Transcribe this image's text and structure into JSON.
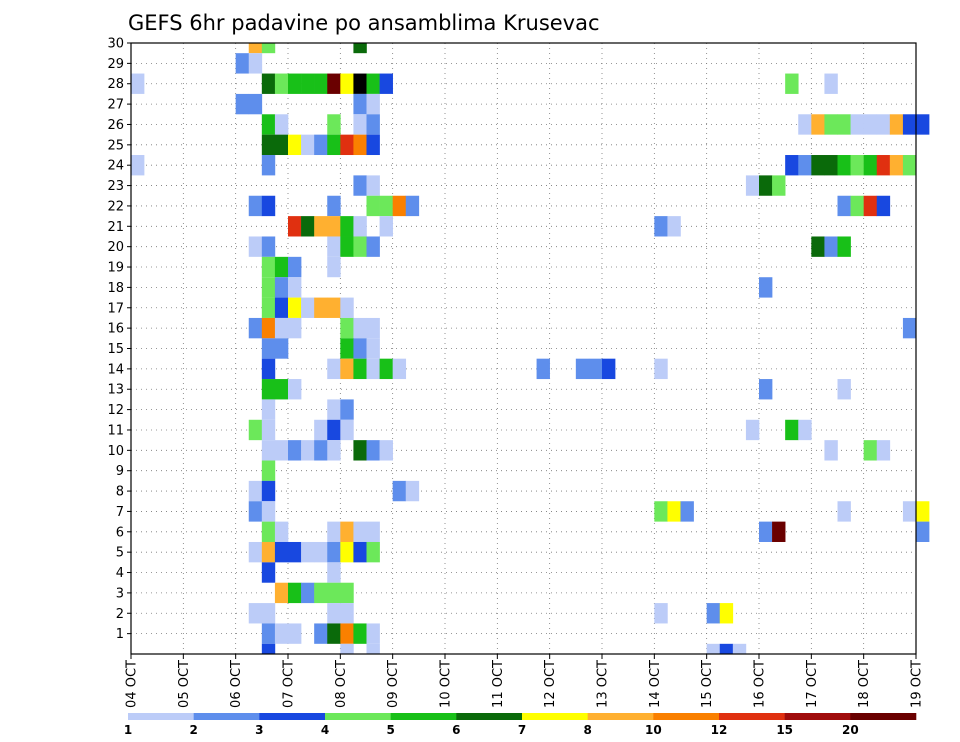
{
  "chart_data": {
    "type": "heatmap",
    "title": "GEFS 6hr padavine po ansamblima Krusevac",
    "xlabel": "",
    "ylabel": "",
    "x_start_day": 4,
    "x_end_day": 19,
    "steps_per_day": 4,
    "xtick_labels": [
      "04 OCT",
      "05 OCT",
      "06 OCT",
      "07 OCT",
      "08 OCT",
      "09 OCT",
      "10 OCT",
      "11 OCT",
      "12 OCT",
      "13 OCT",
      "14 OCT",
      "15 OCT",
      "16 OCT",
      "17 OCT",
      "18 OCT",
      "19 OCT"
    ],
    "ytick_labels": [
      "1",
      "2",
      "3",
      "4",
      "5",
      "6",
      "7",
      "8",
      "9",
      "10",
      "11",
      "12",
      "13",
      "14",
      "15",
      "16",
      "17",
      "18",
      "19",
      "20",
      "21",
      "22",
      "23",
      "24",
      "25",
      "26",
      "27",
      "28",
      "29",
      "30"
    ],
    "ylim": [
      0,
      30
    ],
    "grid": true,
    "colorbar": {
      "labels": [
        "1",
        "2",
        "3",
        "4",
        "5",
        "6",
        "7",
        "8",
        "10",
        "12",
        "15",
        "20"
      ],
      "colors": [
        "#bcccf8",
        "#5e8eec",
        "#1848e0",
        "#6ce85a",
        "#18c018",
        "#0a6a0a",
        "#ffff00",
        "#ffb030",
        "#fa8000",
        "#e03010",
        "#a00c0c",
        "#6a0000"
      ]
    },
    "cells": [
      [
        30,
        6,
        1,
        7
      ],
      [
        30,
        6,
        2,
        3
      ],
      [
        30,
        8,
        1,
        5
      ],
      [
        29,
        6,
        0,
        1
      ],
      [
        29,
        6,
        1,
        0
      ],
      [
        28,
        4,
        0,
        0
      ],
      [
        28,
        6,
        2,
        5
      ],
      [
        28,
        6,
        3,
        3
      ],
      [
        28,
        7,
        0,
        4
      ],
      [
        28,
        7,
        1,
        4
      ],
      [
        28,
        7,
        2,
        4
      ],
      [
        28,
        7,
        3,
        11
      ],
      [
        28,
        8,
        0,
        6
      ],
      [
        28,
        8,
        1,
        12
      ],
      [
        28,
        8,
        2,
        4
      ],
      [
        28,
        8,
        3,
        2
      ],
      [
        28,
        16,
        2,
        3
      ],
      [
        28,
        17,
        1,
        0
      ],
      [
        27,
        6,
        0,
        1
      ],
      [
        27,
        6,
        1,
        1
      ],
      [
        27,
        8,
        1,
        1
      ],
      [
        27,
        8,
        2,
        0
      ],
      [
        26,
        6,
        2,
        4
      ],
      [
        26,
        6,
        3,
        0
      ],
      [
        26,
        7,
        3,
        3
      ],
      [
        26,
        8,
        1,
        0
      ],
      [
        26,
        8,
        2,
        1
      ],
      [
        26,
        16,
        3,
        0
      ],
      [
        26,
        17,
        0,
        7
      ],
      [
        26,
        17,
        1,
        3
      ],
      [
        26,
        17,
        2,
        3
      ],
      [
        26,
        17,
        3,
        0
      ],
      [
        26,
        18,
        0,
        0
      ],
      [
        26,
        18,
        1,
        0
      ],
      [
        26,
        18,
        2,
        7
      ],
      [
        26,
        18,
        3,
        2
      ],
      [
        26,
        19,
        0,
        2
      ],
      [
        25,
        6,
        2,
        5
      ],
      [
        25,
        6,
        3,
        5
      ],
      [
        25,
        7,
        0,
        6
      ],
      [
        25,
        7,
        1,
        0
      ],
      [
        25,
        7,
        2,
        1
      ],
      [
        25,
        7,
        3,
        4
      ],
      [
        25,
        8,
        0,
        9
      ],
      [
        25,
        8,
        1,
        8
      ],
      [
        25,
        8,
        2,
        2
      ],
      [
        24,
        4,
        0,
        0
      ],
      [
        24,
        6,
        2,
        1
      ],
      [
        24,
        16,
        2,
        2
      ],
      [
        24,
        16,
        3,
        1
      ],
      [
        24,
        17,
        0,
        5
      ],
      [
        24,
        17,
        1,
        5
      ],
      [
        24,
        17,
        2,
        4
      ],
      [
        24,
        17,
        3,
        3
      ],
      [
        24,
        18,
        0,
        4
      ],
      [
        24,
        18,
        1,
        9
      ],
      [
        24,
        18,
        2,
        7
      ],
      [
        24,
        18,
        3,
        3
      ],
      [
        23,
        8,
        1,
        1
      ],
      [
        23,
        8,
        2,
        0
      ],
      [
        23,
        15,
        3,
        0
      ],
      [
        23,
        16,
        0,
        5
      ],
      [
        23,
        16,
        1,
        3
      ],
      [
        22,
        6,
        1,
        1
      ],
      [
        22,
        6,
        2,
        2
      ],
      [
        22,
        7,
        3,
        1
      ],
      [
        22,
        8,
        2,
        3
      ],
      [
        22,
        8,
        3,
        3
      ],
      [
        22,
        9,
        0,
        8
      ],
      [
        22,
        9,
        1,
        1
      ],
      [
        22,
        17,
        2,
        1
      ],
      [
        22,
        17,
        3,
        3
      ],
      [
        22,
        18,
        0,
        9
      ],
      [
        22,
        18,
        1,
        2
      ],
      [
        21,
        7,
        0,
        9
      ],
      [
        21,
        7,
        1,
        5
      ],
      [
        21,
        7,
        2,
        7
      ],
      [
        21,
        7,
        3,
        7
      ],
      [
        21,
        8,
        0,
        4
      ],
      [
        21,
        8,
        1,
        0
      ],
      [
        21,
        8,
        3,
        0
      ],
      [
        21,
        14,
        0,
        1
      ],
      [
        21,
        14,
        1,
        0
      ],
      [
        20,
        6,
        1,
        0
      ],
      [
        20,
        6,
        2,
        1
      ],
      [
        20,
        7,
        3,
        0
      ],
      [
        20,
        8,
        0,
        4
      ],
      [
        20,
        8,
        1,
        3
      ],
      [
        20,
        8,
        2,
        1
      ],
      [
        20,
        17,
        0,
        5
      ],
      [
        20,
        17,
        1,
        1
      ],
      [
        20,
        17,
        2,
        4
      ],
      [
        19,
        6,
        2,
        3
      ],
      [
        19,
        6,
        3,
        4
      ],
      [
        19,
        7,
        0,
        1
      ],
      [
        19,
        7,
        3,
        0
      ],
      [
        18,
        6,
        2,
        3
      ],
      [
        18,
        6,
        3,
        1
      ],
      [
        18,
        7,
        0,
        0
      ],
      [
        18,
        16,
        0,
        1
      ],
      [
        17,
        6,
        2,
        3
      ],
      [
        17,
        6,
        3,
        2
      ],
      [
        17,
        7,
        0,
        6
      ],
      [
        17,
        7,
        1,
        0
      ],
      [
        17,
        7,
        2,
        7
      ],
      [
        17,
        7,
        3,
        7
      ],
      [
        17,
        8,
        0,
        0
      ],
      [
        16,
        6,
        1,
        1
      ],
      [
        16,
        6,
        2,
        8
      ],
      [
        16,
        6,
        3,
        0
      ],
      [
        16,
        7,
        0,
        0
      ],
      [
        16,
        8,
        0,
        3
      ],
      [
        16,
        8,
        1,
        0
      ],
      [
        16,
        8,
        2,
        0
      ],
      [
        16,
        18,
        3,
        1
      ],
      [
        15,
        6,
        2,
        1
      ],
      [
        15,
        6,
        3,
        1
      ],
      [
        15,
        8,
        0,
        4
      ],
      [
        15,
        8,
        1,
        1
      ],
      [
        15,
        8,
        2,
        0
      ],
      [
        14,
        6,
        2,
        2
      ],
      [
        14,
        7,
        3,
        0
      ],
      [
        14,
        8,
        0,
        7
      ],
      [
        14,
        8,
        1,
        4
      ],
      [
        14,
        8,
        2,
        0
      ],
      [
        14,
        8,
        3,
        4
      ],
      [
        14,
        9,
        0,
        0
      ],
      [
        14,
        11,
        3,
        1
      ],
      [
        14,
        12,
        2,
        1
      ],
      [
        14,
        12,
        3,
        1
      ],
      [
        14,
        13,
        0,
        2
      ],
      [
        14,
        14,
        0,
        0
      ],
      [
        13,
        6,
        2,
        4
      ],
      [
        13,
        6,
        3,
        4
      ],
      [
        13,
        7,
        0,
        0
      ],
      [
        13,
        16,
        0,
        1
      ],
      [
        13,
        17,
        2,
        0
      ],
      [
        12,
        6,
        2,
        0
      ],
      [
        12,
        7,
        3,
        0
      ],
      [
        12,
        8,
        0,
        1
      ],
      [
        11,
        6,
        1,
        3
      ],
      [
        11,
        6,
        2,
        0
      ],
      [
        11,
        7,
        2,
        0
      ],
      [
        11,
        7,
        3,
        2
      ],
      [
        11,
        8,
        0,
        0
      ],
      [
        11,
        15,
        3,
        0
      ],
      [
        11,
        16,
        2,
        4
      ],
      [
        11,
        16,
        3,
        0
      ],
      [
        10,
        6,
        2,
        0
      ],
      [
        10,
        6,
        3,
        0
      ],
      [
        10,
        7,
        0,
        1
      ],
      [
        10,
        7,
        1,
        0
      ],
      [
        10,
        7,
        2,
        1
      ],
      [
        10,
        7,
        3,
        0
      ],
      [
        10,
        8,
        1,
        5
      ],
      [
        10,
        8,
        2,
        1
      ],
      [
        10,
        8,
        3,
        0
      ],
      [
        10,
        17,
        1,
        0
      ],
      [
        10,
        18,
        0,
        3
      ],
      [
        10,
        18,
        1,
        0
      ],
      [
        9,
        6,
        2,
        3
      ],
      [
        8,
        6,
        1,
        0
      ],
      [
        8,
        6,
        2,
        2
      ],
      [
        8,
        9,
        0,
        1
      ],
      [
        8,
        9,
        1,
        0
      ],
      [
        7,
        6,
        1,
        1
      ],
      [
        7,
        6,
        2,
        0
      ],
      [
        7,
        14,
        0,
        3
      ],
      [
        7,
        14,
        1,
        6
      ],
      [
        7,
        14,
        2,
        1
      ],
      [
        7,
        17,
        2,
        0
      ],
      [
        7,
        18,
        3,
        0
      ],
      [
        7,
        19,
        0,
        6
      ],
      [
        6,
        6,
        2,
        3
      ],
      [
        6,
        6,
        3,
        0
      ],
      [
        6,
        7,
        3,
        0
      ],
      [
        6,
        8,
        0,
        7
      ],
      [
        6,
        8,
        1,
        0
      ],
      [
        6,
        8,
        2,
        0
      ],
      [
        6,
        16,
        0,
        1
      ],
      [
        6,
        16,
        1,
        11
      ],
      [
        6,
        19,
        0,
        1
      ],
      [
        5,
        6,
        1,
        0
      ],
      [
        5,
        6,
        2,
        7
      ],
      [
        5,
        6,
        3,
        2
      ],
      [
        5,
        7,
        0,
        2
      ],
      [
        5,
        7,
        1,
        0
      ],
      [
        5,
        7,
        2,
        0
      ],
      [
        5,
        7,
        3,
        1
      ],
      [
        5,
        8,
        0,
        6
      ],
      [
        5,
        8,
        1,
        2
      ],
      [
        5,
        8,
        2,
        3
      ],
      [
        4,
        6,
        2,
        2
      ],
      [
        4,
        7,
        3,
        0
      ],
      [
        3,
        6,
        3,
        7
      ],
      [
        3,
        7,
        0,
        4
      ],
      [
        3,
        7,
        1,
        1
      ],
      [
        3,
        7,
        2,
        3
      ],
      [
        3,
        7,
        3,
        3
      ],
      [
        3,
        8,
        0,
        3
      ],
      [
        2,
        6,
        1,
        0
      ],
      [
        2,
        6,
        2,
        0
      ],
      [
        2,
        7,
        3,
        0
      ],
      [
        2,
        8,
        0,
        0
      ],
      [
        2,
        14,
        0,
        0
      ],
      [
        2,
        15,
        0,
        1
      ],
      [
        2,
        15,
        1,
        6
      ],
      [
        1,
        6,
        2,
        1
      ],
      [
        1,
        6,
        3,
        0
      ],
      [
        1,
        7,
        0,
        0
      ],
      [
        1,
        7,
        2,
        1
      ],
      [
        1,
        7,
        3,
        5
      ],
      [
        1,
        8,
        0,
        8
      ],
      [
        1,
        8,
        1,
        4
      ],
      [
        1,
        8,
        2,
        0
      ],
      [
        0,
        6,
        2,
        2
      ],
      [
        0,
        8,
        0,
        0
      ],
      [
        0,
        8,
        2,
        0
      ],
      [
        0,
        15,
        0,
        0
      ],
      [
        0,
        15,
        1,
        2
      ],
      [
        0,
        15,
        2,
        0
      ]
    ]
  }
}
